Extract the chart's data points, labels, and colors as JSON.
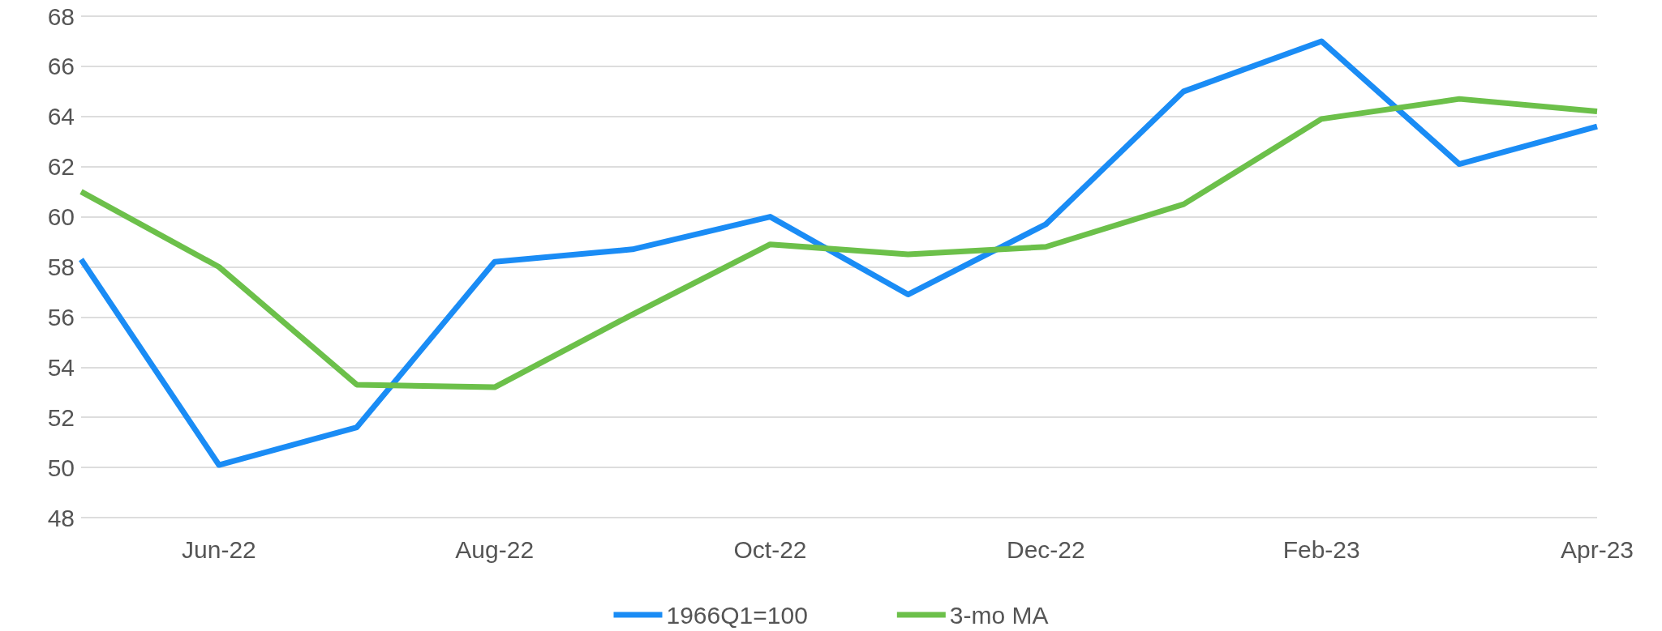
{
  "chart_data": {
    "type": "line",
    "categories": [
      null,
      "Jun-22",
      null,
      "Aug-22",
      null,
      "Oct-22",
      null,
      "Dec-22",
      null,
      "Feb-23",
      null,
      "Apr-23"
    ],
    "series": [
      {
        "name": "1966Q1=100",
        "color": "#1a8cf5",
        "values": [
          58.3,
          50.1,
          51.6,
          58.2,
          58.7,
          60.0,
          56.9,
          59.7,
          65.0,
          67.0,
          62.1,
          63.6
        ]
      },
      {
        "name": "3-mo MA",
        "color": "#6cc04a",
        "values": [
          61.0,
          58.0,
          53.3,
          53.2,
          56.1,
          58.9,
          58.5,
          58.8,
          60.5,
          63.9,
          64.7,
          64.2
        ]
      }
    ],
    "ylim": [
      48,
      68
    ],
    "yticks": [
      48,
      50,
      52,
      54,
      56,
      58,
      60,
      62,
      64,
      66,
      68
    ],
    "grid": "y",
    "legend": "bottom",
    "marker": "none",
    "line_style": "solid"
  }
}
